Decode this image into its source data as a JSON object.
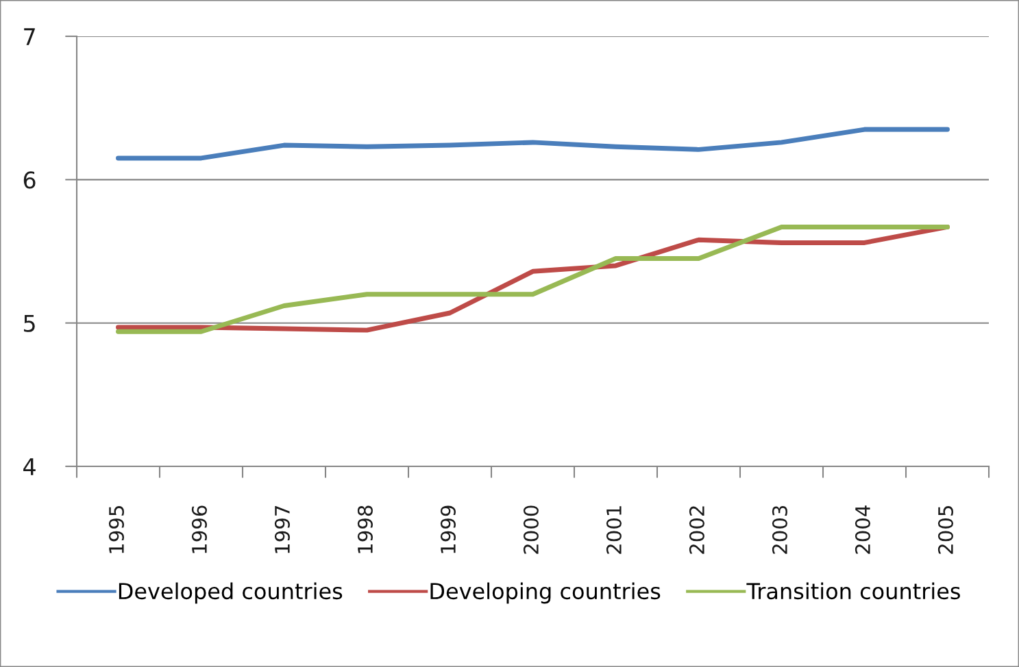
{
  "chart_data": {
    "type": "line",
    "categories": [
      "1995",
      "1996",
      "1997",
      "1998",
      "1999",
      "2000",
      "2001",
      "2002",
      "2003",
      "2004",
      "2005"
    ],
    "series": [
      {
        "name": "Developed countries",
        "color": "#4a7ebb",
        "values": [
          6.15,
          6.15,
          6.24,
          6.23,
          6.24,
          6.26,
          6.23,
          6.21,
          6.26,
          6.35,
          6.35
        ]
      },
      {
        "name": "Developing countries",
        "color": "#be4b48",
        "values": [
          4.97,
          4.97,
          4.96,
          4.95,
          5.07,
          5.36,
          5.4,
          5.58,
          5.56,
          5.56,
          5.67
        ]
      },
      {
        "name": "Transition countries",
        "color": "#98b954",
        "values": [
          4.94,
          4.94,
          5.12,
          5.2,
          5.2,
          5.2,
          5.45,
          5.45,
          5.67,
          5.67,
          5.67
        ]
      }
    ],
    "ylim": [
      4,
      7
    ],
    "yticks": [
      4,
      5,
      6,
      7
    ],
    "grid": "y",
    "legend": "bottom"
  }
}
